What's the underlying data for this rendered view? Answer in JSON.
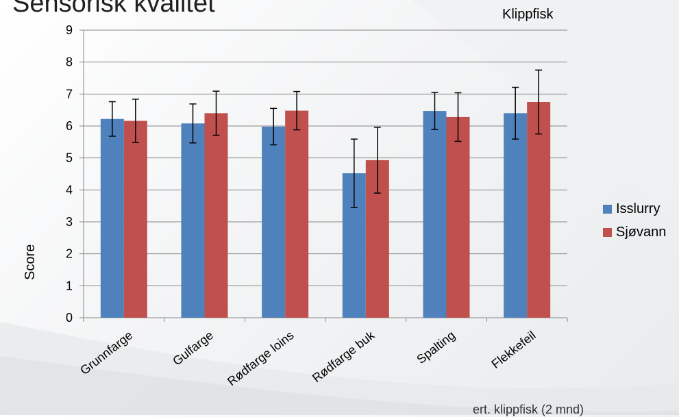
{
  "slide": {
    "title": "Sensorisk kvalitet",
    "footer_note": "ert. klippfisk (2 mnd)"
  },
  "chart_data": {
    "type": "bar",
    "title": "Klippfisk",
    "xlabel": "",
    "ylabel": "Score",
    "ylim": [
      0,
      9
    ],
    "yticks": [
      0,
      1,
      2,
      3,
      4,
      5,
      6,
      7,
      8,
      9
    ],
    "grid": true,
    "legend_position": "right",
    "categories": [
      "Grunnfarge",
      "Gulfarge",
      "Rødfarge loins",
      "Rødfarge buk",
      "Spalting",
      "Flekkefeil"
    ],
    "series": [
      {
        "name": "Isslurry",
        "color": "#4f81bd",
        "values": [
          6.22,
          6.08,
          5.98,
          4.52,
          6.47,
          6.4
        ],
        "error": [
          0.54,
          0.61,
          0.57,
          1.07,
          0.58,
          0.81
        ]
      },
      {
        "name": "Sjøvann",
        "color": "#c0504d",
        "values": [
          6.16,
          6.4,
          6.48,
          4.93,
          6.28,
          6.75
        ],
        "error": [
          0.68,
          0.69,
          0.6,
          1.03,
          0.76,
          1.0
        ]
      }
    ]
  }
}
